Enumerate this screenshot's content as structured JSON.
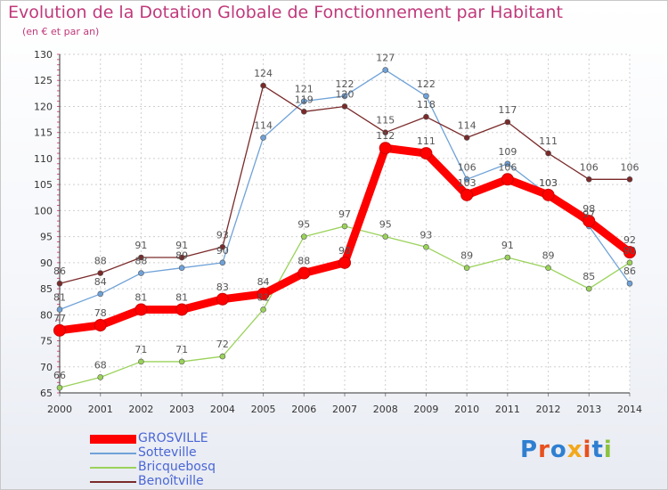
{
  "header": {
    "title": "Evolution de la Dotation Globale de Fonctionnement par Habitant",
    "subtitle": "(en € et par an)"
  },
  "logo": {
    "letters": [
      "P",
      "r",
      "o",
      "x",
      "i",
      "t",
      "i"
    ]
  },
  "chart_data": {
    "type": "line",
    "x": [
      2000,
      2001,
      2002,
      2003,
      2004,
      2005,
      2006,
      2007,
      2008,
      2009,
      2010,
      2011,
      2012,
      2013,
      2014
    ],
    "ylim": [
      65,
      130
    ],
    "yticks": [
      65,
      70,
      75,
      80,
      85,
      90,
      95,
      100,
      105,
      110,
      115,
      120,
      125,
      130
    ],
    "grid": true,
    "legend_position": "bottom-left",
    "series": [
      {
        "name": "GROSVILLE",
        "color": "#ff0000",
        "values": [
          77,
          78,
          81,
          81,
          83,
          84,
          88,
          90,
          112,
          111,
          103,
          106,
          103,
          98,
          92
        ]
      },
      {
        "name": "Sotteville",
        "color": "#6fa2d8",
        "values": [
          81,
          84,
          88,
          89,
          90,
          114,
          121,
          122,
          127,
          122,
          106,
          109,
          103,
          97,
          86
        ]
      },
      {
        "name": "Bricquebosq",
        "color": "#9ad25a",
        "values": [
          66,
          68,
          71,
          71,
          72,
          81,
          95,
          97,
          95,
          93,
          89,
          91,
          89,
          85,
          90
        ]
      },
      {
        "name": "Benoîtville",
        "color": "#7a2a2a",
        "values": [
          86,
          88,
          91,
          91,
          93,
          124,
          119,
          120,
          115,
          118,
          114,
          117,
          111,
          106,
          106
        ]
      }
    ]
  }
}
